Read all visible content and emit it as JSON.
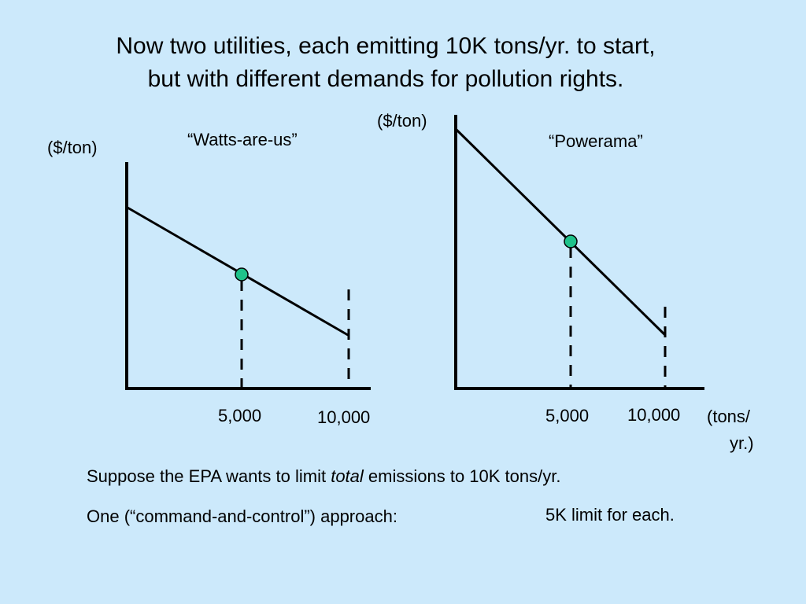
{
  "title": {
    "line1": "Now two utilities, each emitting 10K tons/yr. to start,",
    "line2": "but with different demands for pollution rights."
  },
  "left_graph": {
    "name": "“Watts-are-us”",
    "y_axis_label": "($/ton)",
    "tick_5000": "5,000",
    "tick_10000": "10,000"
  },
  "right_graph": {
    "name": "“Powerama”",
    "y_axis_label": "($/ton)",
    "tick_5000": "5,000",
    "tick_10000": "10,000",
    "x_axis_label_line1": "(tons/",
    "x_axis_label_line2": "yr.)"
  },
  "colors": {
    "background": "#cce9fb",
    "marker": "#1fc28a"
  },
  "text": {
    "line1_pre": "Suppose the EPA wants to limit ",
    "line1_italic": "total",
    "line1_post": " emissions to 10K tons/yr.",
    "line2_left": "One (“command-and-control”) approach:",
    "line2_right": "5K limit for each."
  }
}
